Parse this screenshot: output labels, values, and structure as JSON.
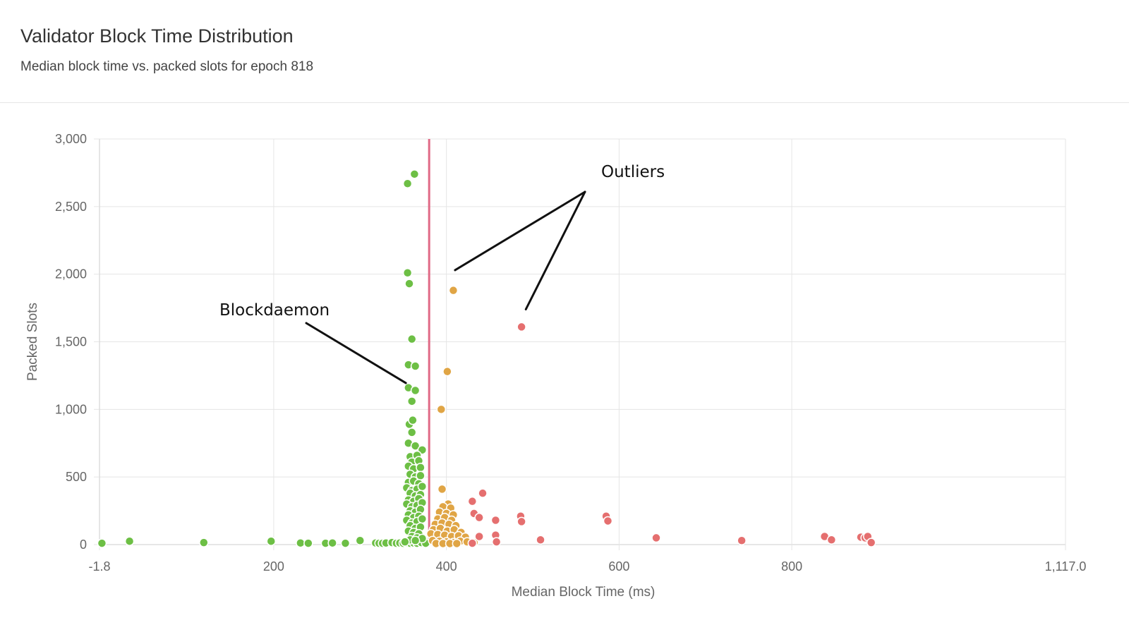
{
  "header": {
    "title": "Validator Block Time Distribution",
    "subtitle": "Median block time vs. packed slots for epoch 818"
  },
  "colors": {
    "green": "#6dbf45",
    "orange": "#e0a545",
    "red": "#e56f6f",
    "reference_line": "#e06a86",
    "grid": "#e5e5e5",
    "axis": "#cccccc"
  },
  "annotations": [
    {
      "text": "Outliers",
      "arrows_to": [
        [
          410,
          2030
        ],
        [
          492,
          1740
        ]
      ]
    },
    {
      "text": "Blockdaemon",
      "arrow_to": [
        353,
        1195
      ]
    }
  ],
  "chart_data": {
    "type": "scatter",
    "xlabel": "Median Block Time (ms)",
    "ylabel": "Packed Slots",
    "xlim": [
      -1.8,
      1117.0
    ],
    "ylim": [
      0,
      3000
    ],
    "x_ticks": [
      -1.8,
      200,
      400,
      600,
      800,
      1117.0
    ],
    "x_tick_labels": [
      "-1.8",
      "200",
      "400",
      "600",
      "800",
      "1,117.0"
    ],
    "y_ticks": [
      0,
      500,
      1000,
      1500,
      2000,
      2500,
      3000
    ],
    "y_tick_labels": [
      "0",
      "500",
      "1,000",
      "1,500",
      "2,000",
      "2,500",
      "3,000"
    ],
    "grid": true,
    "reference_line": {
      "x": 380
    },
    "series": [
      {
        "color": "green",
        "points": [
          [
            1,
            10
          ],
          [
            33,
            25
          ],
          [
            119,
            15
          ],
          [
            197,
            25
          ],
          [
            231,
            12
          ],
          [
            240,
            10
          ],
          [
            260,
            10
          ],
          [
            268,
            12
          ],
          [
            283,
            10
          ],
          [
            300,
            30
          ],
          [
            318,
            12
          ],
          [
            322,
            10
          ],
          [
            326,
            10
          ],
          [
            330,
            12
          ],
          [
            337,
            15
          ],
          [
            342,
            10
          ],
          [
            346,
            12
          ],
          [
            350,
            10
          ],
          [
            354,
            12
          ],
          [
            358,
            10
          ],
          [
            362,
            12
          ],
          [
            366,
            10
          ],
          [
            371,
            15
          ],
          [
            376,
            10
          ],
          [
            355,
            2670
          ],
          [
            363,
            2740
          ],
          [
            355,
            2010
          ],
          [
            357,
            1930
          ],
          [
            360,
            1520
          ],
          [
            356,
            1330
          ],
          [
            364,
            1320
          ],
          [
            356,
            1160
          ],
          [
            364,
            1140
          ],
          [
            360,
            1060
          ],
          [
            357,
            890
          ],
          [
            361,
            920
          ],
          [
            360,
            830
          ],
          [
            356,
            750
          ],
          [
            364,
            730
          ],
          [
            372,
            700
          ],
          [
            358,
            650
          ],
          [
            366,
            660
          ],
          [
            360,
            610
          ],
          [
            368,
            620
          ],
          [
            356,
            580
          ],
          [
            362,
            560
          ],
          [
            370,
            570
          ],
          [
            358,
            520
          ],
          [
            364,
            500
          ],
          [
            370,
            510
          ],
          [
            356,
            460
          ],
          [
            362,
            470
          ],
          [
            368,
            450
          ],
          [
            354,
            420
          ],
          [
            360,
            400
          ],
          [
            366,
            410
          ],
          [
            372,
            430
          ],
          [
            358,
            380
          ],
          [
            364,
            360
          ],
          [
            370,
            370
          ],
          [
            356,
            330
          ],
          [
            362,
            320
          ],
          [
            368,
            340
          ],
          [
            354,
            300
          ],
          [
            360,
            280
          ],
          [
            366,
            290
          ],
          [
            372,
            310
          ],
          [
            358,
            250
          ],
          [
            364,
            240
          ],
          [
            370,
            260
          ],
          [
            356,
            220
          ],
          [
            362,
            200
          ],
          [
            368,
            210
          ],
          [
            354,
            180
          ],
          [
            360,
            160
          ],
          [
            366,
            170
          ],
          [
            372,
            190
          ],
          [
            358,
            140
          ],
          [
            364,
            120
          ],
          [
            370,
            130
          ],
          [
            356,
            100
          ],
          [
            362,
            90
          ],
          [
            368,
            80
          ],
          [
            360,
            60
          ],
          [
            366,
            50
          ],
          [
            372,
            45
          ],
          [
            358,
            35
          ],
          [
            364,
            30
          ],
          [
            352,
            20
          ]
        ]
      },
      {
        "color": "orange",
        "points": [
          [
            408,
            1880
          ],
          [
            401,
            1280
          ],
          [
            394,
            1000
          ],
          [
            395,
            410
          ],
          [
            402,
            300
          ],
          [
            396,
            280
          ],
          [
            405,
            270
          ],
          [
            392,
            240
          ],
          [
            400,
            230
          ],
          [
            408,
            220
          ],
          [
            390,
            190
          ],
          [
            398,
            200
          ],
          [
            406,
            180
          ],
          [
            387,
            150
          ],
          [
            395,
            160
          ],
          [
            403,
            150
          ],
          [
            411,
            140
          ],
          [
            385,
            110
          ],
          [
            393,
            120
          ],
          [
            401,
            100
          ],
          [
            409,
            110
          ],
          [
            417,
            90
          ],
          [
            382,
            80
          ],
          [
            390,
            75
          ],
          [
            398,
            70
          ],
          [
            406,
            60
          ],
          [
            414,
            65
          ],
          [
            422,
            55
          ],
          [
            384,
            30
          ],
          [
            392,
            25
          ],
          [
            400,
            20
          ],
          [
            408,
            15
          ],
          [
            416,
            25
          ],
          [
            424,
            20
          ],
          [
            432,
            15
          ],
          [
            388,
            8
          ],
          [
            396,
            8
          ],
          [
            404,
            8
          ],
          [
            412,
            8
          ]
        ]
      },
      {
        "color": "red",
        "points": [
          [
            487,
            1610
          ],
          [
            442,
            380
          ],
          [
            430,
            320
          ],
          [
            432,
            230
          ],
          [
            438,
            200
          ],
          [
            457,
            180
          ],
          [
            430,
            10
          ],
          [
            438,
            60
          ],
          [
            457,
            70
          ],
          [
            458,
            20
          ],
          [
            486,
            210
          ],
          [
            487,
            170
          ],
          [
            509,
            35
          ],
          [
            585,
            210
          ],
          [
            587,
            175
          ],
          [
            643,
            50
          ],
          [
            742,
            30
          ],
          [
            838,
            60
          ],
          [
            846,
            35
          ],
          [
            880,
            55
          ],
          [
            885,
            50
          ],
          [
            888,
            60
          ],
          [
            892,
            15
          ]
        ]
      }
    ]
  }
}
